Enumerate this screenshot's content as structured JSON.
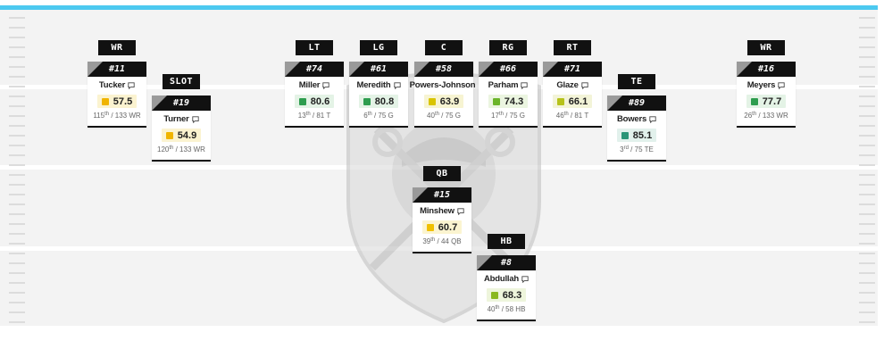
{
  "colors": {
    "accent_bar": "#4cc9f0",
    "grade_green": "#2e9d4f",
    "grade_lime": "#8ab820",
    "grade_yellow": "#e0b800",
    "grade_teal": "#2a9577"
  },
  "field": {
    "background_logo": "raiders-shield-logo"
  },
  "players": [
    {
      "id": "wr-left",
      "position": "WR",
      "jersey": "#11",
      "name": "Tucker",
      "grade": "57.5",
      "grade_color": "#f0b400",
      "grade_bg": "#fbf3d0",
      "rank": "115",
      "rank_suffix": "th",
      "rank_total": " / 133 WR"
    },
    {
      "id": "slot",
      "position": "SLOT",
      "jersey": "#19",
      "name": "Turner",
      "grade": "54.9",
      "grade_color": "#f0b400",
      "grade_bg": "#fbf3d0",
      "rank": "120",
      "rank_suffix": "th",
      "rank_total": " / 133 WR"
    },
    {
      "id": "lt",
      "position": "LT",
      "jersey": "#74",
      "name": "Miller",
      "grade": "80.6",
      "grade_color": "#2e9d4f",
      "grade_bg": "#e4f3e6",
      "rank": "13",
      "rank_suffix": "th",
      "rank_total": " / 81 T"
    },
    {
      "id": "lg",
      "position": "LG",
      "jersey": "#61",
      "name": "Meredith",
      "grade": "80.8",
      "grade_color": "#2e9d4f",
      "grade_bg": "#e4f3e6",
      "rank": "6",
      "rank_suffix": "th",
      "rank_total": " / 75 G"
    },
    {
      "id": "c",
      "position": "C",
      "jersey": "#58",
      "name": "Powers-Johnson",
      "grade": "63.9",
      "grade_color": "#d9c400",
      "grade_bg": "#f7f4d2",
      "rank": "40",
      "rank_suffix": "th",
      "rank_total": " / 75 G"
    },
    {
      "id": "rg",
      "position": "RG",
      "jersey": "#66",
      "name": "Parham",
      "grade": "74.3",
      "grade_color": "#6cb52a",
      "grade_bg": "#ebf5e0",
      "rank": "17",
      "rank_suffix": "th",
      "rank_total": " / 75 G"
    },
    {
      "id": "rt",
      "position": "RT",
      "jersey": "#71",
      "name": "Glaze",
      "grade": "66.1",
      "grade_color": "#b6c21a",
      "grade_bg": "#f3f4d8",
      "rank": "46",
      "rank_suffix": "th",
      "rank_total": " / 81 T"
    },
    {
      "id": "te",
      "position": "TE",
      "jersey": "#89",
      "name": "Bowers",
      "grade": "85.1",
      "grade_color": "#2a9577",
      "grade_bg": "#e2f1ec",
      "rank": "3",
      "rank_suffix": "rd",
      "rank_total": " / 75 TE"
    },
    {
      "id": "wr-right",
      "position": "WR",
      "jersey": "#16",
      "name": "Meyers",
      "grade": "77.7",
      "grade_color": "#2e9d4f",
      "grade_bg": "#e4f3e6",
      "rank": "26",
      "rank_suffix": "th",
      "rank_total": " / 133 WR"
    },
    {
      "id": "qb",
      "position": "QB",
      "jersey": "#15",
      "name": "Minshew",
      "grade": "60.7",
      "grade_color": "#f0c000",
      "grade_bg": "#fbf4d0",
      "rank": "39",
      "rank_suffix": "th",
      "rank_total": " / 44 QB"
    },
    {
      "id": "hb",
      "position": "HB",
      "jersey": "#8",
      "name": "Abdullah",
      "grade": "68.3",
      "grade_color": "#8ab820",
      "grade_bg": "#eef5dc",
      "rank": "40",
      "rank_suffix": "th",
      "rank_total": " / 58 HB"
    }
  ]
}
